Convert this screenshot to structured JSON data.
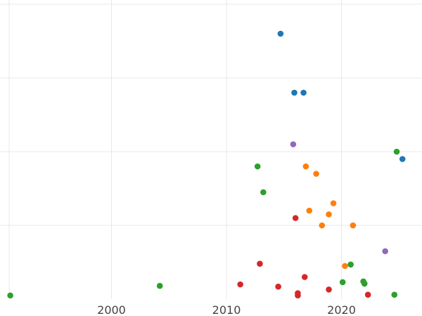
{
  "chart_data": {
    "type": "scatter",
    "title": "",
    "xlabel": "",
    "ylabel": "",
    "xlim": [
      1990,
      2027
    ],
    "ylim": [
      0,
      4.2
    ],
    "x_ticks": [
      2000,
      2010,
      2020
    ],
    "x_tick_labels": [
      "2000",
      "2010",
      "2020"
    ],
    "y_ticks": [
      1,
      2,
      3,
      4
    ],
    "grid": true,
    "legend": "none",
    "series": [
      {
        "color": "#1f77b4",
        "points": [
          {
            "x": 2014.7,
            "y": 3.6
          },
          {
            "x": 2015.9,
            "y": 2.8
          },
          {
            "x": 2016.7,
            "y": 2.8
          },
          {
            "x": 2025.3,
            "y": 1.9
          }
        ]
      },
      {
        "color": "#ff7f0e",
        "points": [
          {
            "x": 2016.9,
            "y": 1.8
          },
          {
            "x": 2017.8,
            "y": 1.7
          },
          {
            "x": 2019.3,
            "y": 1.3
          },
          {
            "x": 2017.2,
            "y": 1.2
          },
          {
            "x": 2018.9,
            "y": 1.15
          },
          {
            "x": 2018.3,
            "y": 1.0
          },
          {
            "x": 2021.0,
            "y": 1.0
          },
          {
            "x": 2020.3,
            "y": 0.45
          }
        ]
      },
      {
        "color": "#2ca02c",
        "points": [
          {
            "x": 1991.2,
            "y": 0.05
          },
          {
            "x": 2004.2,
            "y": 0.18
          },
          {
            "x": 2012.7,
            "y": 1.8
          },
          {
            "x": 2013.2,
            "y": 1.45
          },
          {
            "x": 2020.1,
            "y": 0.23
          },
          {
            "x": 2020.8,
            "y": 0.47
          },
          {
            "x": 2021.9,
            "y": 0.24
          },
          {
            "x": 2022.0,
            "y": 0.21
          },
          {
            "x": 2024.6,
            "y": 0.06
          },
          {
            "x": 2024.8,
            "y": 2.0
          }
        ]
      },
      {
        "color": "#d62728",
        "points": [
          {
            "x": 2011.2,
            "y": 0.2
          },
          {
            "x": 2012.9,
            "y": 0.48
          },
          {
            "x": 2014.5,
            "y": 0.17
          },
          {
            "x": 2016.0,
            "y": 1.1
          },
          {
            "x": 2016.8,
            "y": 0.3
          },
          {
            "x": 2016.2,
            "y": 0.08
          },
          {
            "x": 2016.2,
            "y": 0.05
          },
          {
            "x": 2018.9,
            "y": 0.13
          },
          {
            "x": 2022.3,
            "y": 0.06
          }
        ]
      },
      {
        "color": "#9467bd",
        "points": [
          {
            "x": 2015.8,
            "y": 2.1
          },
          {
            "x": 2023.8,
            "y": 0.65
          }
        ]
      }
    ]
  }
}
